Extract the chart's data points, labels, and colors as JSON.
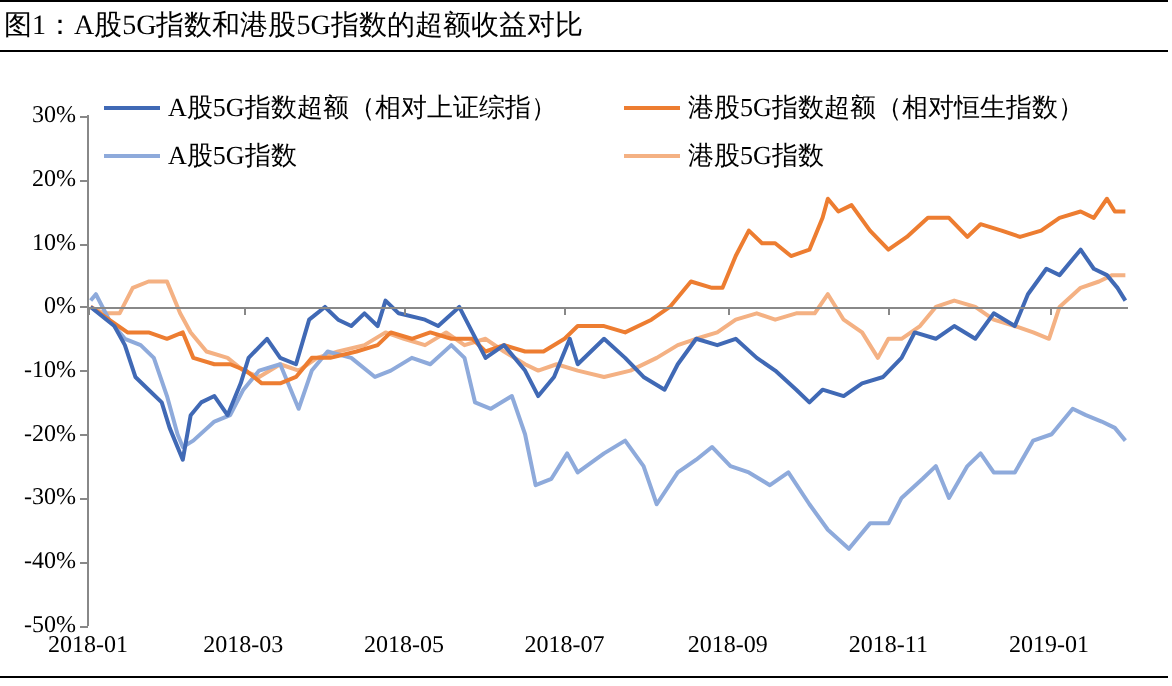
{
  "chart_data": {
    "type": "line",
    "title": "图1：A股5G指数和港股5G指数的超额收益对比",
    "xlim": [
      "2018-01-01",
      "2019-01-31"
    ],
    "xticks": [
      "2018-01",
      "2018-03",
      "2018-05",
      "2018-07",
      "2018-09",
      "2018-11",
      "2019-01"
    ],
    "ylim": [
      -50,
      30
    ],
    "yticks": [
      {
        "value": -50,
        "label": "-50%"
      },
      {
        "value": -40,
        "label": "-40%"
      },
      {
        "value": -30,
        "label": "-30%"
      },
      {
        "value": -20,
        "label": "-20%"
      },
      {
        "value": -10,
        "label": "-10%"
      },
      {
        "value": 0,
        "label": "0%"
      },
      {
        "value": 10,
        "label": "10%"
      },
      {
        "value": 20,
        "label": "20%"
      },
      {
        "value": 30,
        "label": "30%"
      }
    ],
    "legend": "top",
    "marker": "none",
    "line_style": "solid",
    "series": [
      {
        "name": "A股5G指数超额（相对上证综指）",
        "color": "#4069b5",
        "x": [
          "2018-01-02",
          "2018-01-11",
          "2018-01-15",
          "2018-01-19",
          "2018-01-24",
          "2018-01-29",
          "2018-02-01",
          "2018-02-06",
          "2018-02-09",
          "2018-02-13",
          "2018-02-18",
          "2018-02-23",
          "2018-02-28",
          "2018-03-03",
          "2018-03-10",
          "2018-03-15",
          "2018-03-21",
          "2018-03-26",
          "2018-04-01",
          "2018-04-06",
          "2018-04-11",
          "2018-04-16",
          "2018-04-21",
          "2018-04-24",
          "2018-04-29",
          "2018-05-09",
          "2018-05-14",
          "2018-05-22",
          "2018-05-27",
          "2018-06-01",
          "2018-06-08",
          "2018-06-16",
          "2018-06-21",
          "2018-06-27",
          "2018-07-03",
          "2018-07-06",
          "2018-07-16",
          "2018-07-24",
          "2018-07-31",
          "2018-08-08",
          "2018-08-13",
          "2018-08-20",
          "2018-08-28",
          "2018-09-04",
          "2018-09-12",
          "2018-09-19",
          "2018-09-27",
          "2018-10-02",
          "2018-10-07",
          "2018-10-15",
          "2018-10-22",
          "2018-10-30",
          "2018-11-06",
          "2018-11-11",
          "2018-11-19",
          "2018-11-26",
          "2018-12-04",
          "2018-12-11",
          "2018-12-19",
          "2018-12-24",
          "2018-12-31",
          "2019-01-05",
          "2019-01-13",
          "2019-01-18",
          "2019-01-23",
          "2019-01-27",
          "2019-01-30"
        ],
        "values": [
          0,
          -3,
          -6,
          -11,
          -13,
          -15,
          -19,
          -24,
          -17,
          -15,
          -14,
          -17,
          -12,
          -8,
          -5,
          -8,
          -9,
          -2,
          0,
          -2,
          -3,
          -1,
          -3,
          1,
          -1,
          -2,
          -3,
          0,
          -4,
          -8,
          -6,
          -10,
          -14,
          -11,
          -5,
          -9,
          -5,
          -8,
          -11,
          -13,
          -9,
          -5,
          -6,
          -5,
          -8,
          -10,
          -13,
          -15,
          -13,
          -14,
          -12,
          -11,
          -8,
          -4,
          -5,
          -3,
          -5,
          -1,
          -3,
          2,
          6,
          5,
          9,
          6,
          5,
          3,
          1
        ]
      },
      {
        "name": "港股5G指数超额（相对恒生指数）",
        "color": "#ed7d31",
        "x": [
          "2018-01-02",
          "2018-01-09",
          "2018-01-16",
          "2018-01-24",
          "2018-01-31",
          "2018-02-06",
          "2018-02-10",
          "2018-02-18",
          "2018-02-24",
          "2018-03-02",
          "2018-03-08",
          "2018-03-15",
          "2018-03-21",
          "2018-03-27",
          "2018-04-03",
          "2018-04-13",
          "2018-04-21",
          "2018-04-26",
          "2018-05-04",
          "2018-05-11",
          "2018-05-19",
          "2018-05-27",
          "2018-06-01",
          "2018-06-08",
          "2018-06-16",
          "2018-06-23",
          "2018-07-01",
          "2018-07-06",
          "2018-07-16",
          "2018-07-24",
          "2018-08-03",
          "2018-08-10",
          "2018-08-18",
          "2018-08-26",
          "2018-08-30",
          "2018-09-04",
          "2018-09-09",
          "2018-09-14",
          "2018-09-19",
          "2018-09-25",
          "2018-10-02",
          "2018-10-07",
          "2018-10-09",
          "2018-10-13",
          "2018-10-18",
          "2018-10-25",
          "2018-11-01",
          "2018-11-08",
          "2018-11-16",
          "2018-11-24",
          "2018-12-01",
          "2018-12-06",
          "2018-12-14",
          "2018-12-21",
          "2018-12-29",
          "2019-01-05",
          "2019-01-13",
          "2019-01-18",
          "2019-01-23",
          "2019-01-26",
          "2019-01-30"
        ],
        "values": [
          0,
          -2,
          -4,
          -4,
          -5,
          -4,
          -8,
          -9,
          -9,
          -10,
          -12,
          -12,
          -11,
          -8,
          -8,
          -7,
          -6,
          -4,
          -5,
          -4,
          -5,
          -5,
          -7,
          -6,
          -7,
          -7,
          -5,
          -3,
          -3,
          -4,
          -2,
          0,
          4,
          3,
          3,
          8,
          12,
          10,
          10,
          8,
          9,
          14,
          17,
          15,
          16,
          12,
          9,
          11,
          14,
          14,
          11,
          13,
          12,
          11,
          12,
          14,
          15,
          14,
          17,
          15,
          15
        ]
      },
      {
        "name": "A股5G指数",
        "color": "#8eaadb",
        "x": [
          "2018-01-02",
          "2018-01-04",
          "2018-01-09",
          "2018-01-15",
          "2018-01-21",
          "2018-01-26",
          "2018-01-31",
          "2018-02-04",
          "2018-02-06",
          "2018-02-10",
          "2018-02-18",
          "2018-02-24",
          "2018-03-01",
          "2018-03-07",
          "2018-03-15",
          "2018-03-22",
          "2018-03-27",
          "2018-04-02",
          "2018-04-11",
          "2018-04-20",
          "2018-04-26",
          "2018-05-04",
          "2018-05-11",
          "2018-05-19",
          "2018-05-24",
          "2018-05-28",
          "2018-06-03",
          "2018-06-11",
          "2018-06-16",
          "2018-06-20",
          "2018-06-26",
          "2018-07-02",
          "2018-07-06",
          "2018-07-16",
          "2018-07-24",
          "2018-07-31",
          "2018-08-05",
          "2018-08-13",
          "2018-08-20",
          "2018-08-26",
          "2018-09-02",
          "2018-09-09",
          "2018-09-17",
          "2018-09-24",
          "2018-10-02",
          "2018-10-09",
          "2018-10-17",
          "2018-10-25",
          "2018-11-01",
          "2018-11-06",
          "2018-11-14",
          "2018-11-19",
          "2018-11-24",
          "2018-12-01",
          "2018-12-06",
          "2018-12-11",
          "2018-12-19",
          "2018-12-26",
          "2019-01-02",
          "2019-01-10",
          "2019-01-15",
          "2019-01-21",
          "2019-01-26",
          "2019-01-30"
        ],
        "values": [
          1,
          2,
          -2,
          -5,
          -6,
          -8,
          -14,
          -20,
          -22,
          -21,
          -18,
          -17,
          -13,
          -10,
          -9,
          -16,
          -10,
          -7,
          -8,
          -11,
          -10,
          -8,
          -9,
          -6,
          -8,
          -15,
          -16,
          -14,
          -20,
          -28,
          -27,
          -23,
          -26,
          -23,
          -21,
          -25,
          -31,
          -26,
          -24,
          -22,
          -25,
          -26,
          -28,
          -26,
          -31,
          -35,
          -38,
          -34,
          -34,
          -30,
          -27,
          -25,
          -30,
          -25,
          -23,
          -26,
          -26,
          -21,
          -20,
          -16,
          -17,
          -18,
          -19,
          -21
        ]
      },
      {
        "name": "港股5G指数",
        "color": "#f4b183",
        "x": [
          "2018-01-02",
          "2018-01-07",
          "2018-01-13",
          "2018-01-18",
          "2018-01-24",
          "2018-01-31",
          "2018-02-05",
          "2018-02-09",
          "2018-02-15",
          "2018-02-23",
          "2018-03-01",
          "2018-03-07",
          "2018-03-15",
          "2018-03-22",
          "2018-03-29",
          "2018-04-06",
          "2018-04-16",
          "2018-04-24",
          "2018-05-01",
          "2018-05-09",
          "2018-05-17",
          "2018-05-24",
          "2018-06-01",
          "2018-06-08",
          "2018-06-16",
          "2018-06-21",
          "2018-06-28",
          "2018-07-06",
          "2018-07-16",
          "2018-07-26",
          "2018-08-05",
          "2018-08-13",
          "2018-08-20",
          "2018-08-28",
          "2018-09-04",
          "2018-09-12",
          "2018-09-19",
          "2018-09-27",
          "2018-10-04",
          "2018-10-09",
          "2018-10-15",
          "2018-10-22",
          "2018-10-28",
          "2018-11-01",
          "2018-11-06",
          "2018-11-13",
          "2018-11-19",
          "2018-11-26",
          "2018-12-04",
          "2018-12-11",
          "2018-12-19",
          "2018-12-26",
          "2019-01-01",
          "2019-01-05",
          "2019-01-13",
          "2019-01-20",
          "2019-01-25",
          "2019-01-30"
        ],
        "values": [
          0,
          -1,
          -1,
          3,
          4,
          4,
          -1,
          -4,
          -7,
          -8,
          -10,
          -11,
          -9,
          -10,
          -8,
          -7,
          -6,
          -4,
          -5,
          -6,
          -4,
          -6,
          -5,
          -7,
          -9,
          -10,
          -9,
          -10,
          -11,
          -10,
          -8,
          -6,
          -5,
          -4,
          -2,
          -1,
          -2,
          -1,
          -1,
          2,
          -2,
          -4,
          -8,
          -5,
          -5,
          -3,
          0,
          1,
          0,
          -2,
          -3,
          -4,
          -5,
          0,
          3,
          4,
          5,
          5
        ]
      }
    ]
  }
}
